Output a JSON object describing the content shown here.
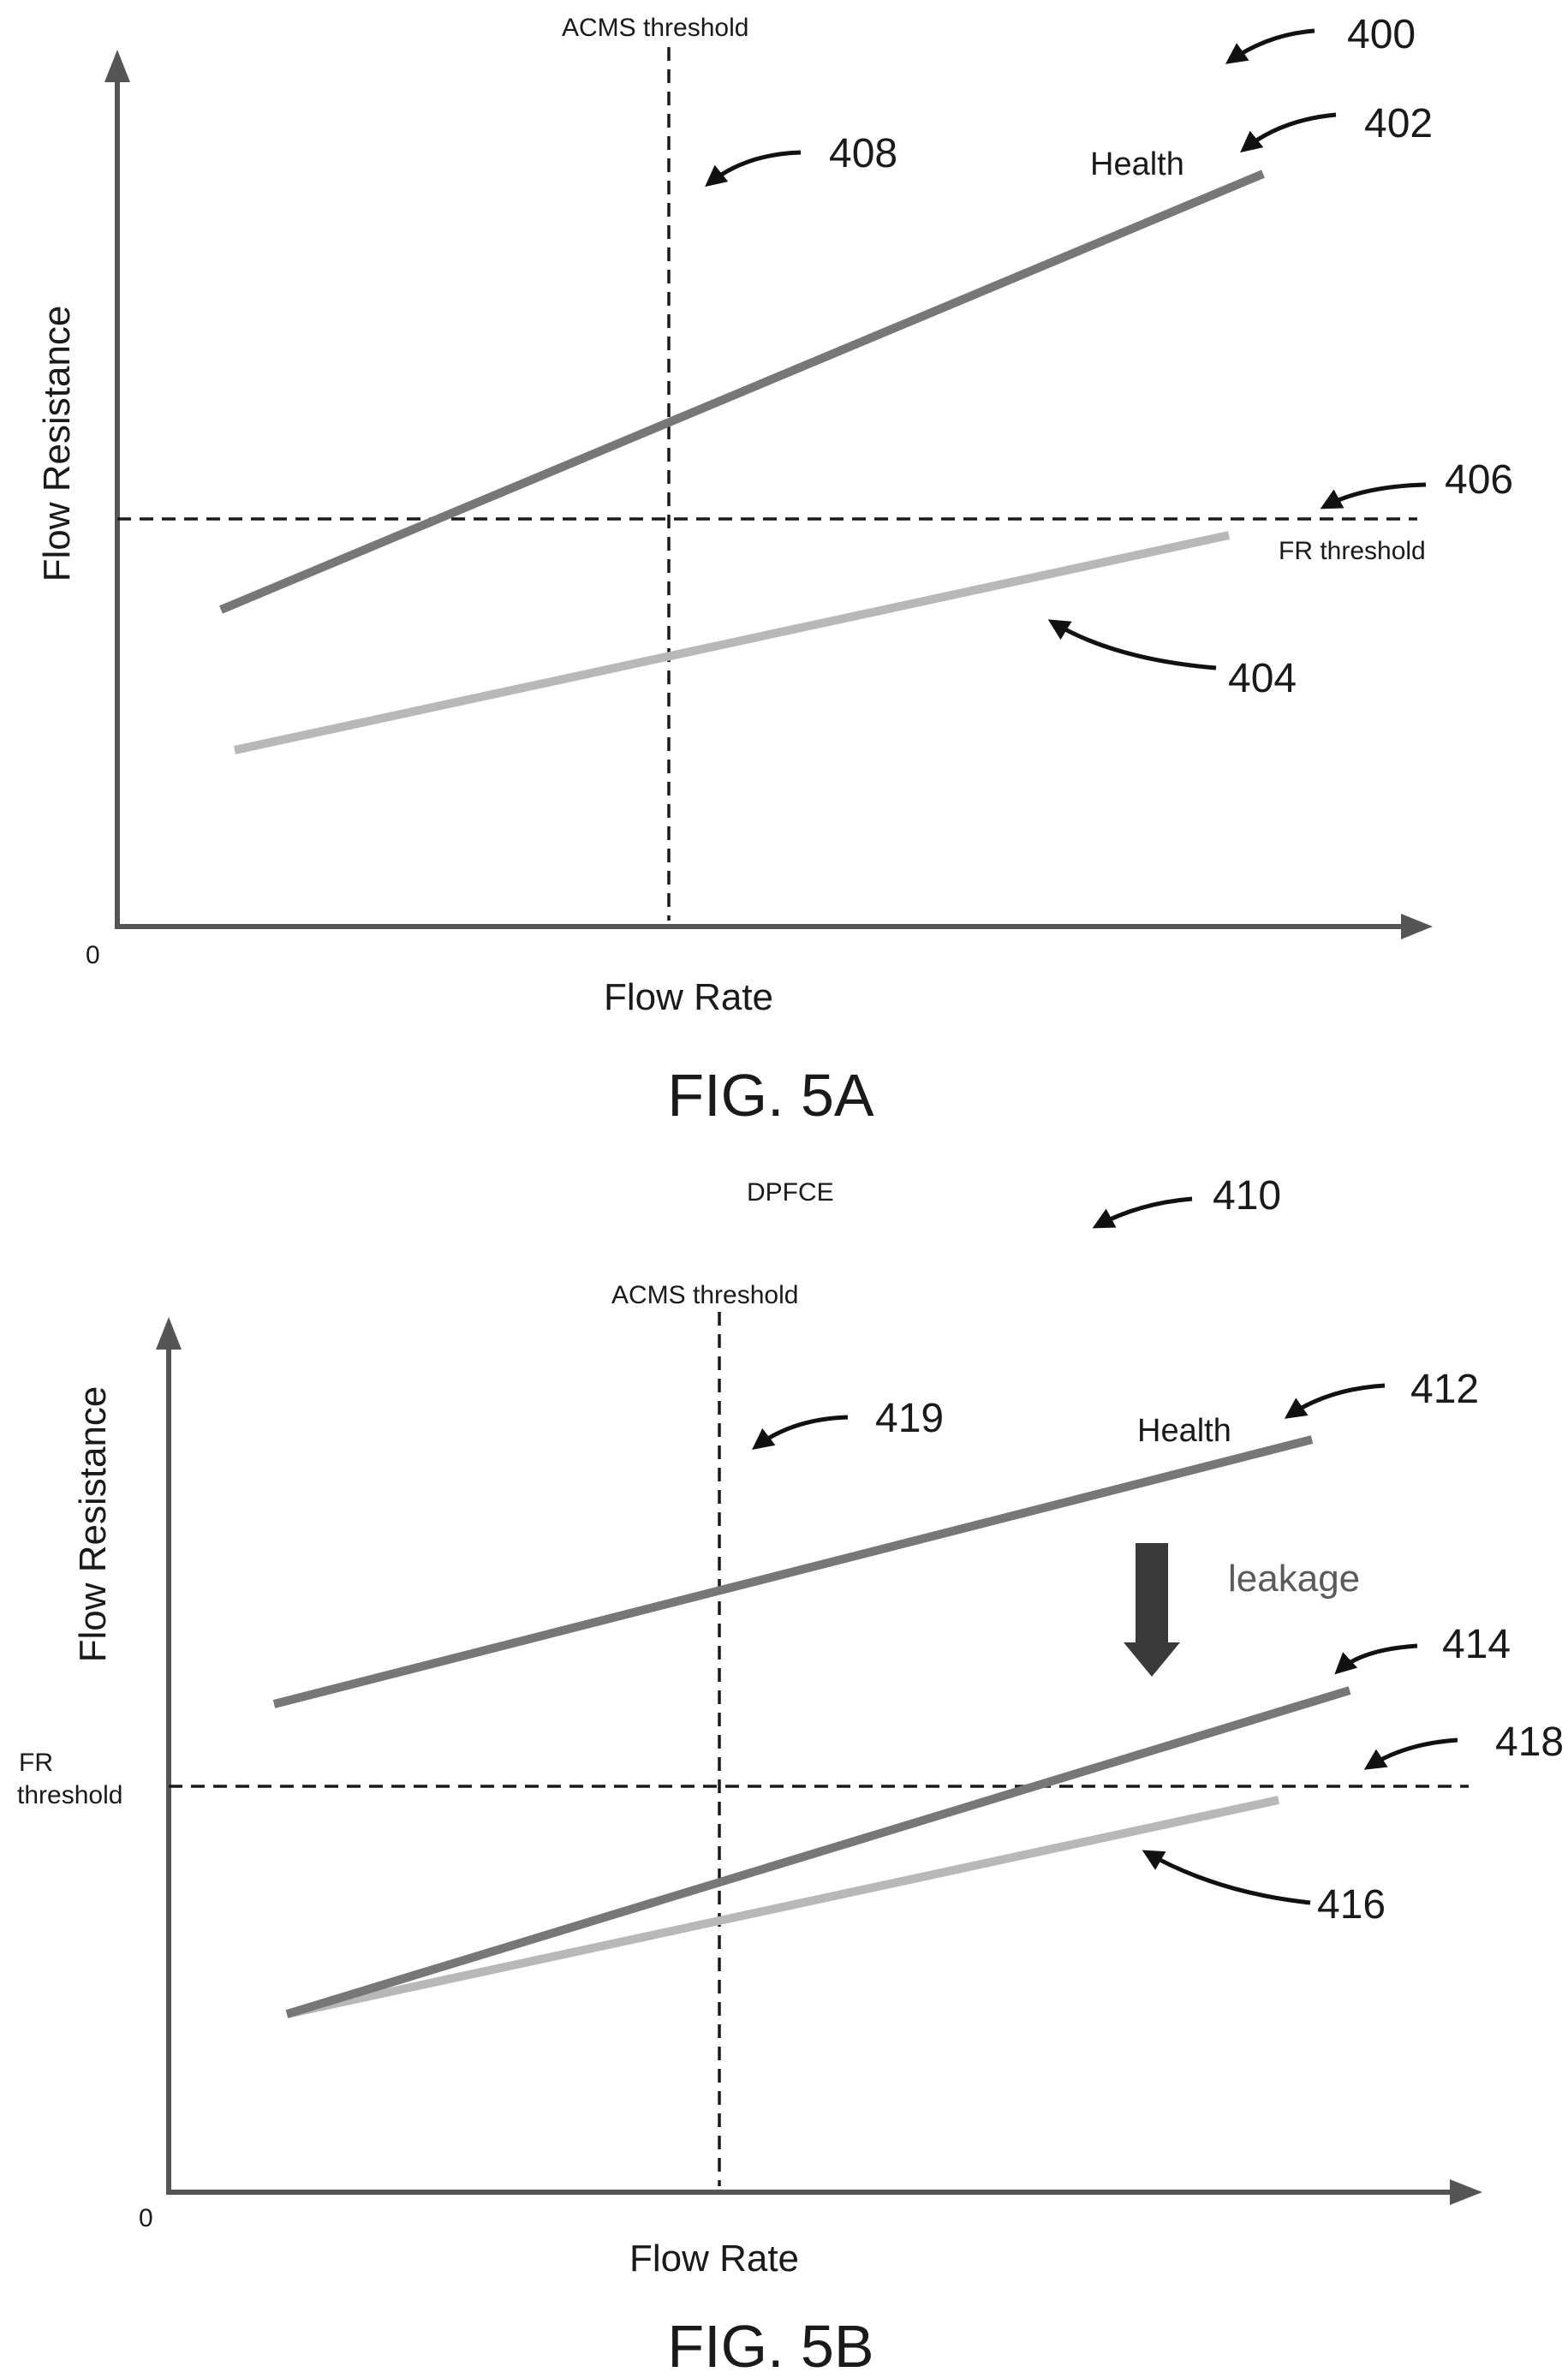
{
  "fig_a": {
    "ref_figure": "400",
    "ref_health": "402",
    "ref_lower": "404",
    "ref_fr": "406",
    "ref_acms": "408",
    "acms_label": "ACMS threshold",
    "health_label": "Health",
    "fr_label": "FR threshold",
    "ylabel": "Flow Resistance",
    "xlabel": "Flow Rate",
    "origin": "0",
    "caption": "FIG. 5A"
  },
  "fig_b": {
    "title": "DPFCE",
    "ref_figure": "410",
    "ref_health": "412",
    "ref_middle": "414",
    "ref_lower": "416",
    "ref_fr": "418",
    "ref_acms": "419",
    "acms_label": "ACMS threshold",
    "health_label": "Health",
    "leakage_label": "leakage",
    "fr_label_line1": "FR",
    "fr_label_line2": "threshold",
    "ylabel": "Flow Resistance",
    "xlabel": "Flow Rate",
    "origin": "0",
    "caption": "FIG. 5B"
  },
  "colors": {
    "dark_line": "#777777",
    "light_line": "#b8b8b8",
    "axis": "#555555",
    "text": "#1a1a1a"
  }
}
